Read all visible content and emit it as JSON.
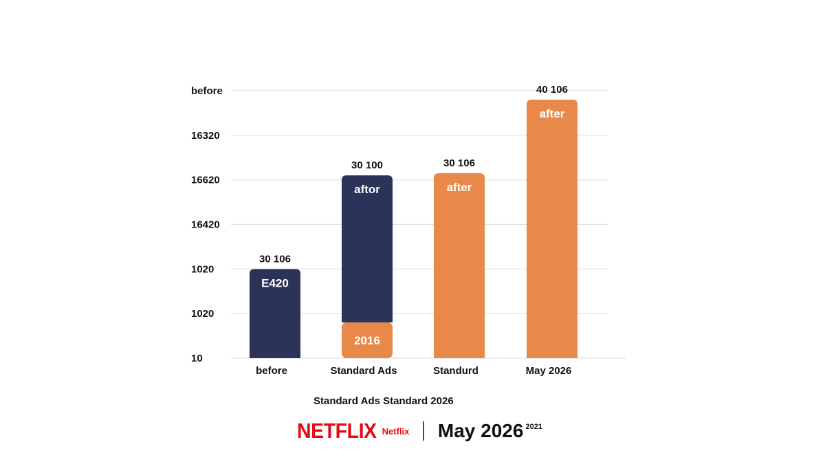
{
  "colors": {
    "navy": "#2b3359",
    "orange": "#e8894a",
    "netflix_red": "#e50914",
    "grid": "#dde0e6"
  },
  "chart_data": {
    "type": "bar",
    "stacked": true,
    "categories": [
      "before",
      "Standard Ads",
      "Standurd",
      "May 2026"
    ],
    "y_tick_labels": [
      "10",
      "1020",
      "1020",
      "16420",
      "16620",
      "16320",
      "before"
    ],
    "ylim": [
      0,
      6
    ],
    "grid": true,
    "series": [
      {
        "color": "navy",
        "values": [
          2.0,
          3.3,
          0,
          0
        ]
      },
      {
        "color": "orange",
        "values": [
          0,
          0.8,
          4.15,
          5.8
        ]
      }
    ],
    "bar_top_labels": [
      "30 106",
      "30 100",
      "30 106",
      "40 106"
    ],
    "bar_inner_labels": [
      "E420",
      "aftor",
      "after",
      "after"
    ],
    "segment_labels": [
      "",
      "2016",
      "",
      ""
    ]
  },
  "caption": "Standard Ads Standard 2026",
  "footer": {
    "logo_word": "NETFLIX",
    "logo_sub": "Netflix",
    "date": "May 2026",
    "date_sup": "2021"
  }
}
